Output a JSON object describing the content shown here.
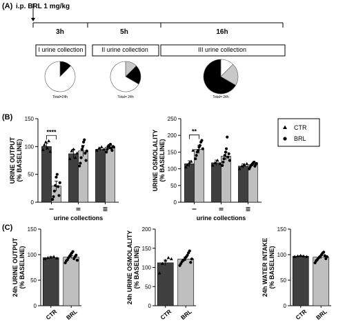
{
  "panel_a": {
    "label": "(A)",
    "treatment": "i.p. BRL 1 mg/kg",
    "durations": [
      "3h",
      "5h",
      "16h"
    ],
    "collections": [
      "I urine collection",
      "II urine collection",
      "III urine collection"
    ],
    "pie_totals": [
      "Total=24h",
      "Total= 24h",
      "Total= 24h"
    ]
  },
  "panel_b_label": "(B)",
  "panel_c_label": "(C)",
  "legend": {
    "ctr": "CTR",
    "brl": "BRL"
  },
  "colors": {
    "ctr": "#404040",
    "brl": "#bfbfbf",
    "pie_fill": "#000000"
  },
  "chart_data": [
    {
      "id": "pie-I",
      "type": "pie",
      "slices": [
        {
          "label": "I",
          "value": 3,
          "color": "#000000"
        },
        {
          "label": "other",
          "value": 21,
          "color": "#ffffff"
        }
      ]
    },
    {
      "id": "pie-II",
      "type": "pie",
      "slices": [
        {
          "label": "I",
          "value": 3,
          "color": "#c8c8c8"
        },
        {
          "label": "II",
          "value": 5,
          "color": "#000000"
        },
        {
          "label": "other",
          "value": 16,
          "color": "#ffffff"
        }
      ]
    },
    {
      "id": "pie-III",
      "type": "pie",
      "slices": [
        {
          "label": "I",
          "value": 3,
          "color": "#ffffff"
        },
        {
          "label": "II",
          "value": 5,
          "color": "#c8c8c8"
        },
        {
          "label": "III",
          "value": 16,
          "color": "#000000"
        }
      ]
    },
    {
      "id": "urine-output",
      "type": "bar",
      "ylabel": [
        "URINE OUTPUT",
        "(% BASELINE)"
      ],
      "xlabel": "urine collections",
      "categories": [
        "I",
        "II",
        "III"
      ],
      "ylim": [
        0,
        150
      ],
      "yticks": [
        0,
        50,
        100,
        150
      ],
      "series": [
        {
          "name": "CTR",
          "values": [
            100,
            87,
            95
          ],
          "errors": [
            6,
            8,
            3
          ]
        },
        {
          "name": "BRL",
          "values": [
            29,
            92,
            99
          ],
          "errors": [
            9,
            10,
            3
          ]
        }
      ],
      "points": {
        "CTR": [
          [
            94,
            103,
            108,
            97,
            110,
            91
          ],
          [
            78,
            92,
            95,
            80,
            88
          ],
          [
            93,
            97,
            99,
            95
          ]
        ],
        "BRL": [
          [
            5,
            10,
            20,
            30,
            45,
            50,
            28,
            12,
            35
          ],
          [
            65,
            70,
            80,
            95,
            100,
            108,
            112,
            88,
            75,
            92
          ],
          [
            90,
            95,
            100,
            102,
            98,
            104,
            97,
            93,
            100,
            99
          ]
        ]
      },
      "significance": {
        "group": "I",
        "label": "****"
      }
    },
    {
      "id": "urine-osmolality",
      "type": "bar",
      "ylabel": [
        "URINE OSMOLALITY",
        "(% BASELINE)"
      ],
      "xlabel": "urine collections",
      "categories": [
        "I",
        "II",
        "III"
      ],
      "ylim": [
        0,
        250
      ],
      "yticks": [
        0,
        50,
        100,
        150,
        200,
        250
      ],
      "series": [
        {
          "name": "CTR",
          "values": [
            115,
            118,
            108
          ],
          "errors": [
            9,
            8,
            7
          ]
        },
        {
          "name": "BRL",
          "values": [
            158,
            138,
            112
          ],
          "errors": [
            12,
            12,
            4
          ]
        }
      ],
      "points": {
        "CTR": [
          [
            105,
            112,
            118,
            122,
            155
          ],
          [
            110,
            118,
            125,
            115
          ],
          [
            100,
            108,
            112,
            115
          ]
        ],
        "BRL": [
          [
            130,
            140,
            150,
            155,
            165,
            170,
            180,
            185,
            160
          ],
          [
            110,
            120,
            130,
            140,
            150,
            160,
            195,
            135,
            145,
            125
          ],
          [
            100,
            105,
            110,
            112,
            115,
            118,
            120,
            108,
            113,
            116
          ]
        ]
      },
      "significance": {
        "group": "I",
        "label": "**"
      }
    },
    {
      "id": "24h-urine-output",
      "type": "bar",
      "ylabel": [
        "24h URINE OUTPUT",
        "(% BASELINE)"
      ],
      "categories": [
        "CTR",
        "BRL"
      ],
      "ylim": [
        0,
        150
      ],
      "yticks": [
        0,
        50,
        100,
        150
      ],
      "values": [
        94,
        95
      ],
      "errors": [
        2,
        3
      ],
      "points": [
        [
          92,
          94,
          95,
          96,
          93
        ],
        [
          84,
          88,
          90,
          94,
          97,
          100,
          103,
          106,
          92,
          96,
          99,
          89
        ]
      ]
    },
    {
      "id": "24h-urine-osmolality",
      "type": "bar",
      "ylabel": [
        "24h URINE OSMOLALITY",
        "(% BASELINE)"
      ],
      "categories": [
        "CTR",
        "BRL"
      ],
      "ylim": [
        0,
        200
      ],
      "yticks": [
        0,
        50,
        100,
        150,
        200
      ],
      "values": [
        112,
        122
      ],
      "errors": [
        7,
        5
      ],
      "points": [
        [
          85,
          110,
          118,
          125,
          122
        ],
        [
          105,
          110,
          115,
          118,
          120,
          125,
          128,
          132,
          138,
          143,
          113,
          122
        ]
      ]
    },
    {
      "id": "24h-water-intake",
      "type": "bar",
      "ylabel": [
        "24h WATER INTAKE",
        "(% BASELINE)"
      ],
      "categories": [
        "CTR",
        "BRL"
      ],
      "ylim": [
        0,
        150
      ],
      "yticks": [
        0,
        50,
        100,
        150
      ],
      "values": [
        97,
        95
      ],
      "errors": [
        1,
        3
      ],
      "points": [
        [
          96,
          97,
          98,
          97,
          96
        ],
        [
          84,
          88,
          90,
          93,
          95,
          97,
          100,
          103,
          105,
          98,
          92,
          96
        ]
      ]
    }
  ]
}
